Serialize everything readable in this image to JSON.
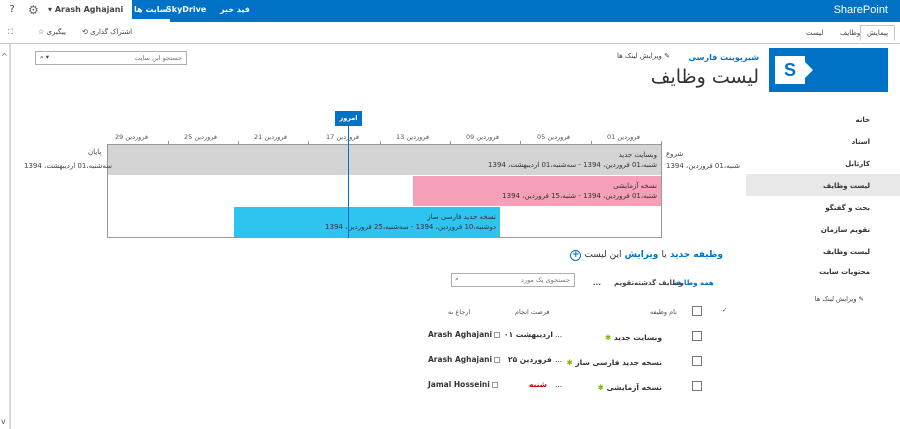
{
  "suite_bar": {
    "brand": "SharePoint",
    "links": [
      "فید خبر",
      "SkyDrive",
      "سایت ها"
    ],
    "user": "Arash Aghajani",
    "help": "?"
  },
  "ribbon": {
    "tabs": [
      "پیمایش",
      "وظایف",
      "لیست"
    ],
    "share_label": "اشتراک گذاری",
    "follow_label": "پیگیری"
  },
  "header": {
    "site_name": "شیرپوینت فارسی",
    "edit_links": "ویرایش لینک ها",
    "page_title": "لیست وظایف",
    "search_placeholder": "جستجو این سایت"
  },
  "quick_launch": {
    "items": [
      "خانه",
      "اسناد",
      "کارتابل",
      "لیست وظایف",
      "بحث و گفتگو",
      "تقویم سازمان",
      "لیست وظایف",
      "محتویات سایت"
    ],
    "selected_index": 3,
    "edit_links": "ویرایش لینک ها"
  },
  "timeline": {
    "today_label": "امروز",
    "ticks": [
      "فروردین 01",
      "فروردین 05",
      "فروردین 09",
      "فروردین 13",
      "فروردین 17",
      "فروردین 21",
      "فروردین 25",
      "فروردین 29"
    ],
    "start_label": "شروع",
    "start_date": "شنبه،01 فروردین، 1394",
    "end_label": "پایان",
    "end_date": "سه‌شنبه،01 اردیبهشت، 1394",
    "bars": [
      {
        "title": "وبسایت جدید",
        "dates": "شنبه،01 فروردین، 1394 - سه‌شنبه،01 اردیبهشت، 1394",
        "color": "#d4d4d4"
      },
      {
        "title": "نسخه آزمایشی",
        "dates": "شنبه،01 فروردین، 1394 - شنبه،15 فروردین، 1394",
        "color": "#f5a0b8"
      },
      {
        "title": "نسخه جدید فارسی ساز",
        "dates": "دوشنبه،10 فروردین، 1394 - سه‌شنبه،25 فروردین، 1394",
        "color": "#2ec4f0"
      }
    ]
  },
  "list": {
    "new_task_prefix": "وظیفه جدید",
    "new_task_or": "یا",
    "new_task_edit": "ویرایش",
    "new_task_suffix": "این لیست",
    "views": [
      "همه وظایف",
      "وظایف گذشته",
      "تقویم",
      "..."
    ],
    "search_placeholder": "جستجوی یک مورد",
    "columns": {
      "task_name": "نام وظیفه",
      "due_date": "فرصت انجام",
      "assigned_to": "ارجاع به"
    },
    "rows": [
      {
        "task": "وبسایت جدید",
        "ellipsis": "...",
        "due": "اردیبهشت ۰۱",
        "assigned": "Arash Aghajani",
        "overdue": false
      },
      {
        "task": "نسخه جدید فارسی ساز",
        "ellipsis": "...",
        "due": "فروردین ۲۵",
        "assigned": "Arash Aghajani",
        "overdue": false
      },
      {
        "task": "نسخه آزمایشی",
        "ellipsis": "...",
        "due": "شنبه",
        "assigned": "Jamal Hosseini",
        "overdue": true
      }
    ]
  },
  "colors": {
    "accent": "#0072c6",
    "overdue": "#cc0000",
    "new_star": "#7fb800"
  }
}
